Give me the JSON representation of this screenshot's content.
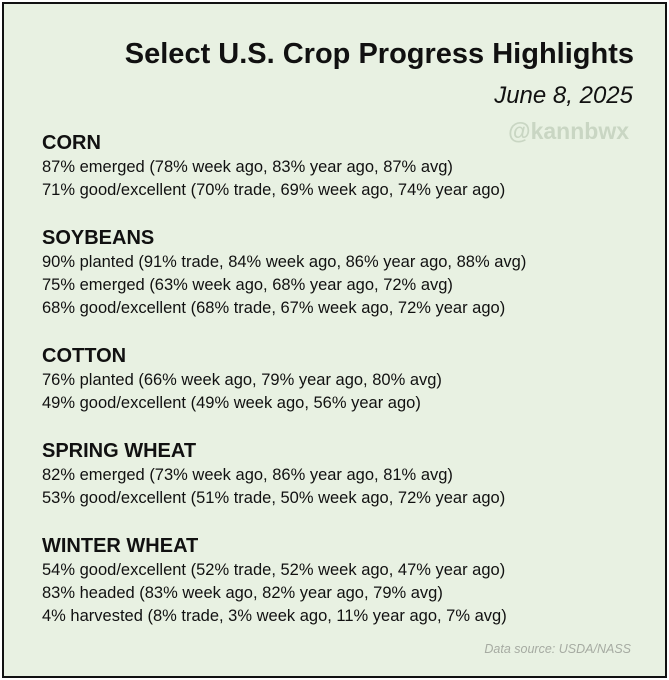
{
  "header": {
    "title": "Select U.S. Crop Progress Highlights",
    "date": "June 8, 2025",
    "watermark": "@kannbwx"
  },
  "crops": [
    {
      "name": "CORN",
      "lines": [
        "87% emerged (78% week ago, 83% year ago, 87% avg)",
        "71% good/excellent (70% trade, 69% week ago, 74% year ago)"
      ]
    },
    {
      "name": "SOYBEANS",
      "lines": [
        "90% planted (91% trade, 84% week ago, 86% year ago, 88% avg)",
        "75% emerged (63% week ago, 68% year ago, 72% avg)",
        "68% good/excellent (68% trade, 67% week ago, 72% year ago)"
      ]
    },
    {
      "name": "COTTON",
      "lines": [
        "76% planted (66% week ago, 79% year ago, 80% avg)",
        "49% good/excellent (49% week ago, 56% year ago)"
      ]
    },
    {
      "name": "SPRING WHEAT",
      "lines": [
        "82% emerged (73% week ago, 86% year ago, 81% avg)",
        "53% good/excellent (51% trade, 50% week ago, 72% year ago)"
      ]
    },
    {
      "name": "WINTER WHEAT",
      "lines": [
        "54% good/excellent (52% trade, 52% week ago, 47% year ago)",
        "83% headed (83% week ago, 82% year ago, 79% avg)",
        "4% harvested (8% trade, 3% week ago, 11% year ago, 7% avg)"
      ]
    }
  ],
  "footer": {
    "source": "Data source: USDA/NASS"
  },
  "colors": {
    "background": "#e8f1e2",
    "border": "#111111",
    "text": "#111111",
    "watermark": "#c9d6c3",
    "source": "#a6aba2"
  }
}
